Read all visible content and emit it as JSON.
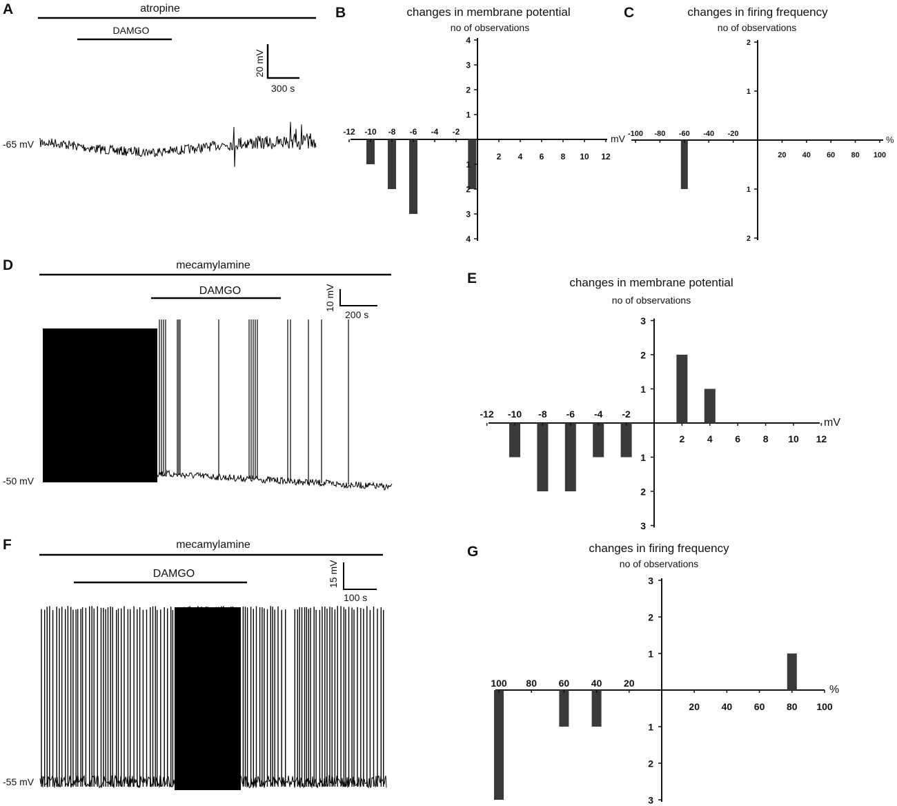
{
  "colors": {
    "bar": "#3a3a3a",
    "trace": "#000000",
    "axis": "#111111"
  },
  "traces": [
    {
      "panel": "A",
      "drug_label": "atropine",
      "agonist_label": "DAMGO",
      "scale_v": "20 mV",
      "scale_t": "300 s",
      "baseline": "-65 mV"
    },
    {
      "panel": "D",
      "drug_label": "mecamylamine",
      "agonist_label": "DAMGO",
      "scale_v": "10 mV",
      "scale_t": "200 s",
      "baseline": "-50 mV"
    },
    {
      "panel": "F",
      "drug_label": "mecamylamine",
      "agonist_label": "DAMGO",
      "scale_v": "15 mV",
      "scale_t": "100 s",
      "baseline": "-55 mV"
    }
  ],
  "chart_data": [
    {
      "panel": "B",
      "type": "bar",
      "title": "changes in membrane potential",
      "subtitle": "no of observations",
      "x_unit": "mV",
      "xlim": [
        -12,
        12
      ],
      "ylim": [
        -4,
        4
      ],
      "x_ticks": [
        -12,
        -10,
        -8,
        -6,
        -4,
        -2,
        2,
        4,
        6,
        8,
        10,
        12
      ],
      "y_ticks": [
        1,
        2,
        3,
        4
      ],
      "x": [
        -10,
        -8,
        -6,
        -0.5
      ],
      "values": [
        -1,
        -2,
        -3,
        -2
      ]
    },
    {
      "panel": "C",
      "type": "bar",
      "title": "changes in firing frequency",
      "subtitle": "no of observations",
      "x_unit": "%",
      "xlim": [
        -100,
        100
      ],
      "ylim": [
        -2,
        2
      ],
      "x_ticks": [
        -100,
        -80,
        -60,
        -40,
        -20,
        20,
        40,
        60,
        80,
        100
      ],
      "y_ticks": [
        1,
        2
      ],
      "x": [
        -60
      ],
      "values": [
        -1
      ]
    },
    {
      "panel": "E",
      "type": "bar",
      "title": "changes in membrane potential",
      "subtitle": "no of observations",
      "x_unit": "mV",
      "xlim": [
        -12,
        12
      ],
      "ylim": [
        -3,
        3
      ],
      "x_ticks": [
        -12,
        -10,
        -8,
        -6,
        -4,
        -2,
        2,
        4,
        6,
        8,
        10,
        12
      ],
      "y_ticks": [
        1,
        2,
        3
      ],
      "x": [
        -10,
        -8,
        -6,
        -4,
        -2,
        2,
        4
      ],
      "values": [
        -1,
        -2,
        -2,
        -1,
        -1,
        2,
        1
      ]
    },
    {
      "panel": "G",
      "type": "bar",
      "title": "changes in firing frequency",
      "subtitle": "no of observations",
      "x_unit": "%",
      "xlim": [
        -100,
        100
      ],
      "ylim": [
        -3,
        3
      ],
      "x_ticks": [
        -100,
        -80,
        -60,
        -40,
        -20,
        20,
        40,
        60,
        80,
        100
      ],
      "x_tick_labels": [
        "100",
        "80",
        "60",
        "40",
        "20",
        "20",
        "40",
        "60",
        "80",
        "100"
      ],
      "y_ticks": [
        1,
        2,
        3
      ],
      "x": [
        -100,
        -60,
        -40,
        80
      ],
      "values": [
        -3,
        -1,
        -1,
        1
      ]
    }
  ]
}
